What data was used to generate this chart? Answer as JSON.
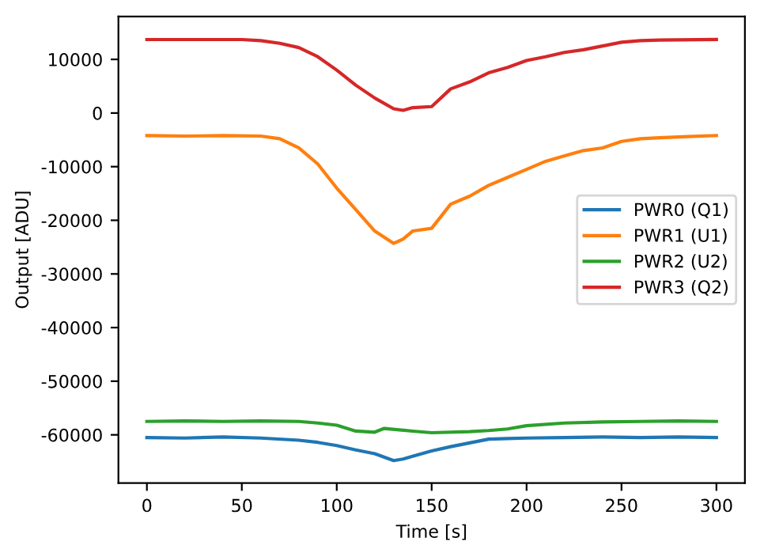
{
  "chart_data": {
    "type": "line",
    "xlabel": "Time [s]",
    "ylabel": "Output [ADU]",
    "xlim": [
      -15,
      315
    ],
    "ylim": [
      -69000,
      18000
    ],
    "xticks": [
      0,
      50,
      100,
      150,
      200,
      250,
      300
    ],
    "yticks": [
      -60000,
      -50000,
      -40000,
      -30000,
      -20000,
      -10000,
      0,
      10000
    ],
    "grid": false,
    "legend": "right",
    "marker": "none",
    "line_style": "solid",
    "series": [
      {
        "name": "PWR0 (Q1)",
        "color": "#1f77b4",
        "x": [
          0,
          20,
          40,
          60,
          80,
          90,
          100,
          110,
          120,
          130,
          135,
          140,
          150,
          160,
          170,
          180,
          190,
          200,
          220,
          240,
          260,
          280,
          300
        ],
        "values": [
          -60500,
          -60600,
          -60400,
          -60600,
          -61000,
          -61400,
          -62000,
          -62800,
          -63500,
          -64800,
          -64500,
          -64000,
          -63000,
          -62200,
          -61500,
          -60800,
          -60700,
          -60600,
          -60500,
          -60400,
          -60500,
          -60400,
          -60500
        ]
      },
      {
        "name": "PWR1 (U1)",
        "color": "#ff7f0e",
        "x": [
          0,
          20,
          40,
          60,
          70,
          80,
          90,
          100,
          110,
          120,
          130,
          135,
          140,
          150,
          160,
          170,
          180,
          190,
          200,
          210,
          220,
          230,
          240,
          250,
          260,
          270,
          285,
          300
        ],
        "values": [
          -4200,
          -4300,
          -4200,
          -4300,
          -4800,
          -6500,
          -9500,
          -14000,
          -18000,
          -22000,
          -24300,
          -23500,
          -22000,
          -21500,
          -17000,
          -15500,
          -13500,
          -12000,
          -10500,
          -9000,
          -8000,
          -7000,
          -6500,
          -5300,
          -4800,
          -4600,
          -4400,
          -4200
        ]
      },
      {
        "name": "PWR2 (U2)",
        "color": "#2ca02c",
        "x": [
          0,
          20,
          40,
          60,
          80,
          90,
          100,
          110,
          120,
          125,
          140,
          150,
          170,
          180,
          190,
          200,
          220,
          240,
          260,
          280,
          300
        ],
        "values": [
          -57500,
          -57400,
          -57500,
          -57400,
          -57500,
          -57800,
          -58200,
          -59300,
          -59500,
          -58800,
          -59300,
          -59600,
          -59400,
          -59200,
          -58900,
          -58300,
          -57800,
          -57600,
          -57500,
          -57400,
          -57500
        ]
      },
      {
        "name": "PWR3 (Q2)",
        "color": "#d62728",
        "x": [
          0,
          25,
          50,
          60,
          70,
          80,
          90,
          100,
          110,
          120,
          130,
          135,
          140,
          150,
          160,
          170,
          180,
          190,
          200,
          210,
          220,
          230,
          240,
          250,
          260,
          270,
          300
        ],
        "values": [
          13700,
          13700,
          13700,
          13500,
          13000,
          12200,
          10500,
          8000,
          5200,
          2800,
          800,
          500,
          1000,
          1200,
          4500,
          5800,
          7500,
          8500,
          9800,
          10500,
          11300,
          11800,
          12500,
          13200,
          13500,
          13600,
          13700
        ]
      }
    ]
  }
}
